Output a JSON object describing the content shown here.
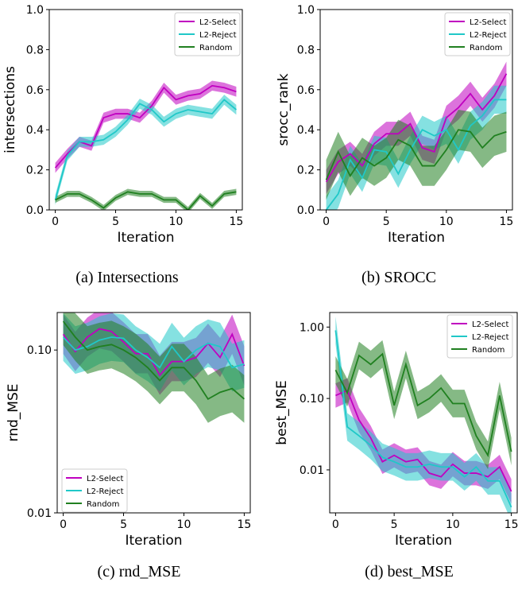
{
  "colors": {
    "select": "#c000c0",
    "reject": "#20c8c8",
    "random": "#208020"
  },
  "captions": [
    "(a) Intersections",
    "(b) SROCC",
    "(c) rnd_MSE",
    "(d) best_MSE"
  ],
  "chart_data": [
    {
      "type": "line",
      "title": "",
      "xlabel": "Iteration",
      "ylabel": "intersections",
      "xlim": [
        -0.5,
        15.5
      ],
      "ylim": [
        0,
        1.0
      ],
      "yscale": "linear",
      "xticks": [
        0,
        5,
        10,
        15
      ],
      "xtick_labels": [
        "0",
        "5",
        "10",
        "15"
      ],
      "yticks": [
        0,
        0.2,
        0.4,
        0.6,
        0.8,
        1.0
      ],
      "ytick_labels": [
        "0.0",
        "0.2",
        "0.4",
        "0.6",
        "0.8",
        "1.0"
      ],
      "legend": "top-right",
      "x": [
        0,
        1,
        2,
        3,
        4,
        5,
        6,
        7,
        8,
        9,
        10,
        11,
        12,
        13,
        14,
        15
      ],
      "series": [
        {
          "name": "L2-Select",
          "values": [
            0.21,
            0.28,
            0.34,
            0.32,
            0.46,
            0.48,
            0.48,
            0.46,
            0.52,
            0.61,
            0.55,
            0.57,
            0.58,
            0.62,
            0.61,
            0.59
          ],
          "band": 0.025
        },
        {
          "name": "L2-Reject",
          "values": [
            0.05,
            0.27,
            0.34,
            0.34,
            0.35,
            0.39,
            0.45,
            0.53,
            0.5,
            0.44,
            0.48,
            0.5,
            0.49,
            0.48,
            0.55,
            0.5
          ],
          "band": 0.025
        },
        {
          "name": "Random",
          "values": [
            0.05,
            0.08,
            0.08,
            0.05,
            0.01,
            0.06,
            0.09,
            0.08,
            0.08,
            0.05,
            0.05,
            0.0,
            0.07,
            0.02,
            0.08,
            0.09
          ],
          "band": 0.015
        }
      ]
    },
    {
      "type": "line",
      "title": "",
      "xlabel": "Iteration",
      "ylabel": "srocc_rank",
      "xlim": [
        -0.5,
        15.5
      ],
      "ylim": [
        0,
        1.0
      ],
      "yscale": "linear",
      "xticks": [
        0,
        5,
        10,
        15
      ],
      "xtick_labels": [
        "0",
        "5",
        "10",
        "15"
      ],
      "yticks": [
        0,
        0.2,
        0.4,
        0.6,
        0.8,
        1.0
      ],
      "ytick_labels": [
        "0.0",
        "0.2",
        "0.4",
        "0.6",
        "0.8",
        "1.0"
      ],
      "legend": "top-right",
      "x": [
        0,
        1,
        2,
        3,
        4,
        5,
        6,
        7,
        8,
        9,
        10,
        11,
        12,
        13,
        14,
        15
      ],
      "series": [
        {
          "name": "L2-Select",
          "values": [
            0.14,
            0.24,
            0.28,
            0.22,
            0.33,
            0.38,
            0.38,
            0.43,
            0.31,
            0.29,
            0.46,
            0.51,
            0.58,
            0.5,
            0.57,
            0.68
          ],
          "band": 0.06
        },
        {
          "name": "L2-Reject",
          "values": [
            0.0,
            0.08,
            0.25,
            0.16,
            0.3,
            0.29,
            0.18,
            0.3,
            0.4,
            0.37,
            0.4,
            0.3,
            0.42,
            0.47,
            0.55,
            0.55
          ],
          "band": 0.07
        },
        {
          "name": "Random",
          "values": [
            0.15,
            0.29,
            0.17,
            0.26,
            0.22,
            0.26,
            0.35,
            0.32,
            0.22,
            0.22,
            0.3,
            0.4,
            0.39,
            0.31,
            0.37,
            0.39
          ],
          "band": 0.1
        }
      ]
    },
    {
      "type": "line",
      "title": "",
      "xlabel": "Iteration",
      "ylabel": "rnd_MSE",
      "xlim": [
        -0.5,
        15.5
      ],
      "ylim": [
        0.01,
        0.17
      ],
      "yscale": "log",
      "xticks": [
        0,
        5,
        10,
        15
      ],
      "xtick_labels": [
        "0",
        "5",
        "10",
        "15"
      ],
      "yticks": [
        0.01,
        0.1
      ],
      "ytick_labels": [
        "0.01",
        "0.10"
      ],
      "legend": "bottom-left",
      "x": [
        0,
        1,
        2,
        3,
        4,
        5,
        6,
        7,
        8,
        9,
        10,
        11,
        12,
        13,
        14,
        15
      ],
      "series": [
        {
          "name": "L2-Select",
          "values": [
            0.125,
            0.098,
            0.12,
            0.135,
            0.13,
            0.112,
            0.095,
            0.095,
            0.07,
            0.085,
            0.085,
            0.09,
            0.11,
            0.09,
            0.125,
            0.08
          ],
          "band": 0.08
        },
        {
          "name": "L2-Reject",
          "values": [
            0.12,
            0.1,
            0.105,
            0.115,
            0.12,
            0.118,
            0.1,
            0.09,
            0.078,
            0.105,
            0.085,
            0.1,
            0.11,
            0.105,
            0.078,
            0.082
          ],
          "band": 0.1
        },
        {
          "name": "Random",
          "values": [
            0.15,
            0.12,
            0.1,
            0.105,
            0.108,
            0.1,
            0.09,
            0.078,
            0.065,
            0.078,
            0.078,
            0.065,
            0.05,
            0.055,
            0.058,
            0.05
          ],
          "band": 0.1
        }
      ]
    },
    {
      "type": "line",
      "title": "",
      "xlabel": "Iteration",
      "ylabel": "best_MSE",
      "xlim": [
        -0.5,
        15.5
      ],
      "ylim": [
        0.0025,
        1.6
      ],
      "yscale": "log",
      "xticks": [
        0,
        5,
        10,
        15
      ],
      "xtick_labels": [
        "0",
        "5",
        "10",
        "15"
      ],
      "yticks": [
        0.01,
        0.1,
        1.0
      ],
      "ytick_labels": [
        "0.01",
        "0.10",
        "1.00"
      ],
      "legend": "top-right",
      "x": [
        0,
        1,
        2,
        3,
        4,
        5,
        6,
        7,
        8,
        9,
        10,
        11,
        12,
        13,
        14,
        15
      ],
      "series": [
        {
          "name": "L2-Select",
          "values": [
            0.11,
            0.13,
            0.05,
            0.028,
            0.013,
            0.016,
            0.013,
            0.014,
            0.009,
            0.008,
            0.012,
            0.009,
            0.009,
            0.008,
            0.011,
            0.005
          ],
          "band": 0.12
        },
        {
          "name": "L2-Reject",
          "values": [
            0.9,
            0.04,
            0.03,
            0.022,
            0.015,
            0.013,
            0.011,
            0.011,
            0.012,
            0.011,
            0.011,
            0.008,
            0.011,
            0.007,
            0.007,
            0.003
          ],
          "band": 0.14
        },
        {
          "name": "Random",
          "values": [
            0.25,
            0.12,
            0.4,
            0.3,
            0.42,
            0.08,
            0.3,
            0.08,
            0.1,
            0.14,
            0.085,
            0.085,
            0.03,
            0.016,
            0.11,
            0.018
          ],
          "band": 0.14
        }
      ]
    }
  ]
}
